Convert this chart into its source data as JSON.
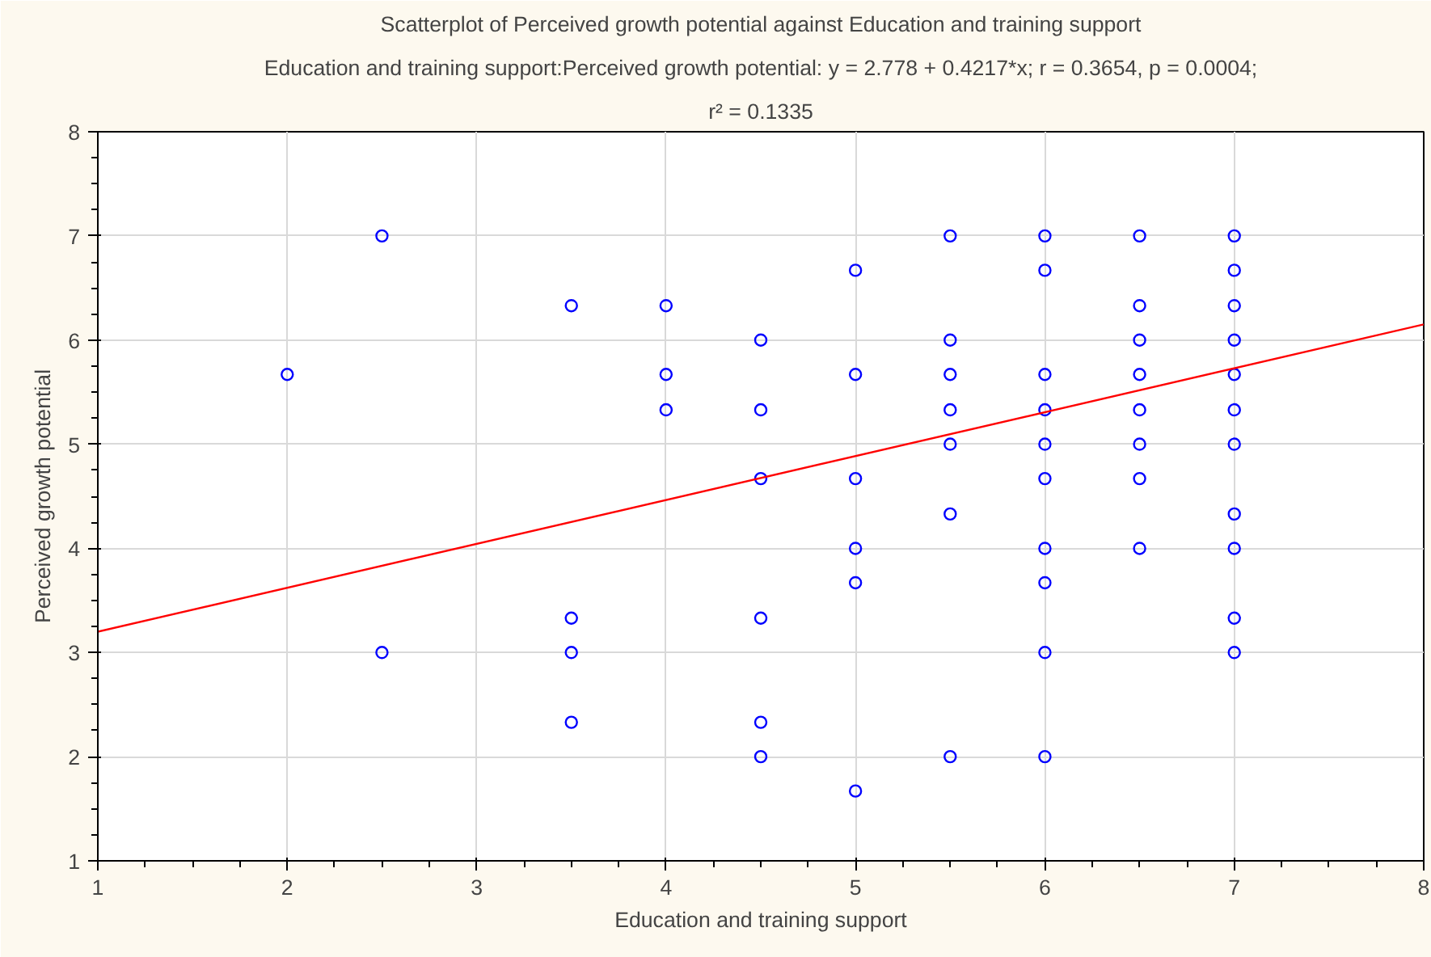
{
  "chart_data": {
    "type": "scatter",
    "title": "Scatterplot of Perceived growth potential against Education and training support",
    "subtitle": "Education and training support:Perceived growth potential: y = 2.778 + 0.4217*x; r = 0.3654, p = 0.0004;",
    "annotations": [
      "r² = 0.1335"
    ],
    "xlabel": "Education and training support",
    "ylabel": "Perceived growth potential",
    "xlim": [
      1,
      8
    ],
    "ylim": [
      1,
      8
    ],
    "xticks": [
      1,
      2,
      3,
      4,
      5,
      6,
      7,
      8
    ],
    "yticks": [
      1,
      2,
      3,
      4,
      5,
      6,
      7,
      8
    ],
    "grid": true,
    "series": [
      {
        "color": "#0000ff",
        "marker": "circle",
        "x": [
          2,
          2.5,
          2.5,
          3.5,
          3.5,
          3.5,
          3.5,
          4,
          4,
          4,
          4.5,
          4.5,
          4.5,
          4.5,
          4.5,
          4.5,
          5,
          5,
          5,
          5,
          5,
          5,
          5.5,
          5.5,
          5.5,
          5.5,
          5.5,
          5.5,
          5.5,
          6,
          6,
          6,
          6,
          6,
          6,
          6,
          6,
          6,
          6,
          6.5,
          6.5,
          6.5,
          6.5,
          6.5,
          6.5,
          6.5,
          6.5,
          7,
          7,
          7,
          7,
          7,
          7,
          7,
          7,
          7,
          7,
          7
        ],
        "values": [
          5.67,
          7,
          3,
          6.33,
          3.33,
          3,
          2.33,
          6.33,
          5.67,
          5.33,
          6,
          5.33,
          4.67,
          3.33,
          2.33,
          2,
          6.67,
          5.67,
          4.67,
          4,
          3.67,
          1.67,
          7,
          6,
          5.67,
          5.33,
          5,
          4.33,
          2,
          7,
          6.67,
          5.67,
          5.33,
          5,
          4.67,
          4,
          3.67,
          3,
          2,
          7,
          6.33,
          6,
          5.67,
          5.33,
          5,
          4.67,
          4,
          7,
          6.67,
          6.33,
          6,
          5.67,
          5.33,
          5,
          4.33,
          4,
          3.33,
          3
        ]
      },
      {
        "type": "line",
        "color": "#ff0000",
        "marker": "none",
        "line_style": "solid",
        "x": [
          1,
          8
        ],
        "values": [
          3.2,
          6.15
        ]
      }
    ]
  }
}
